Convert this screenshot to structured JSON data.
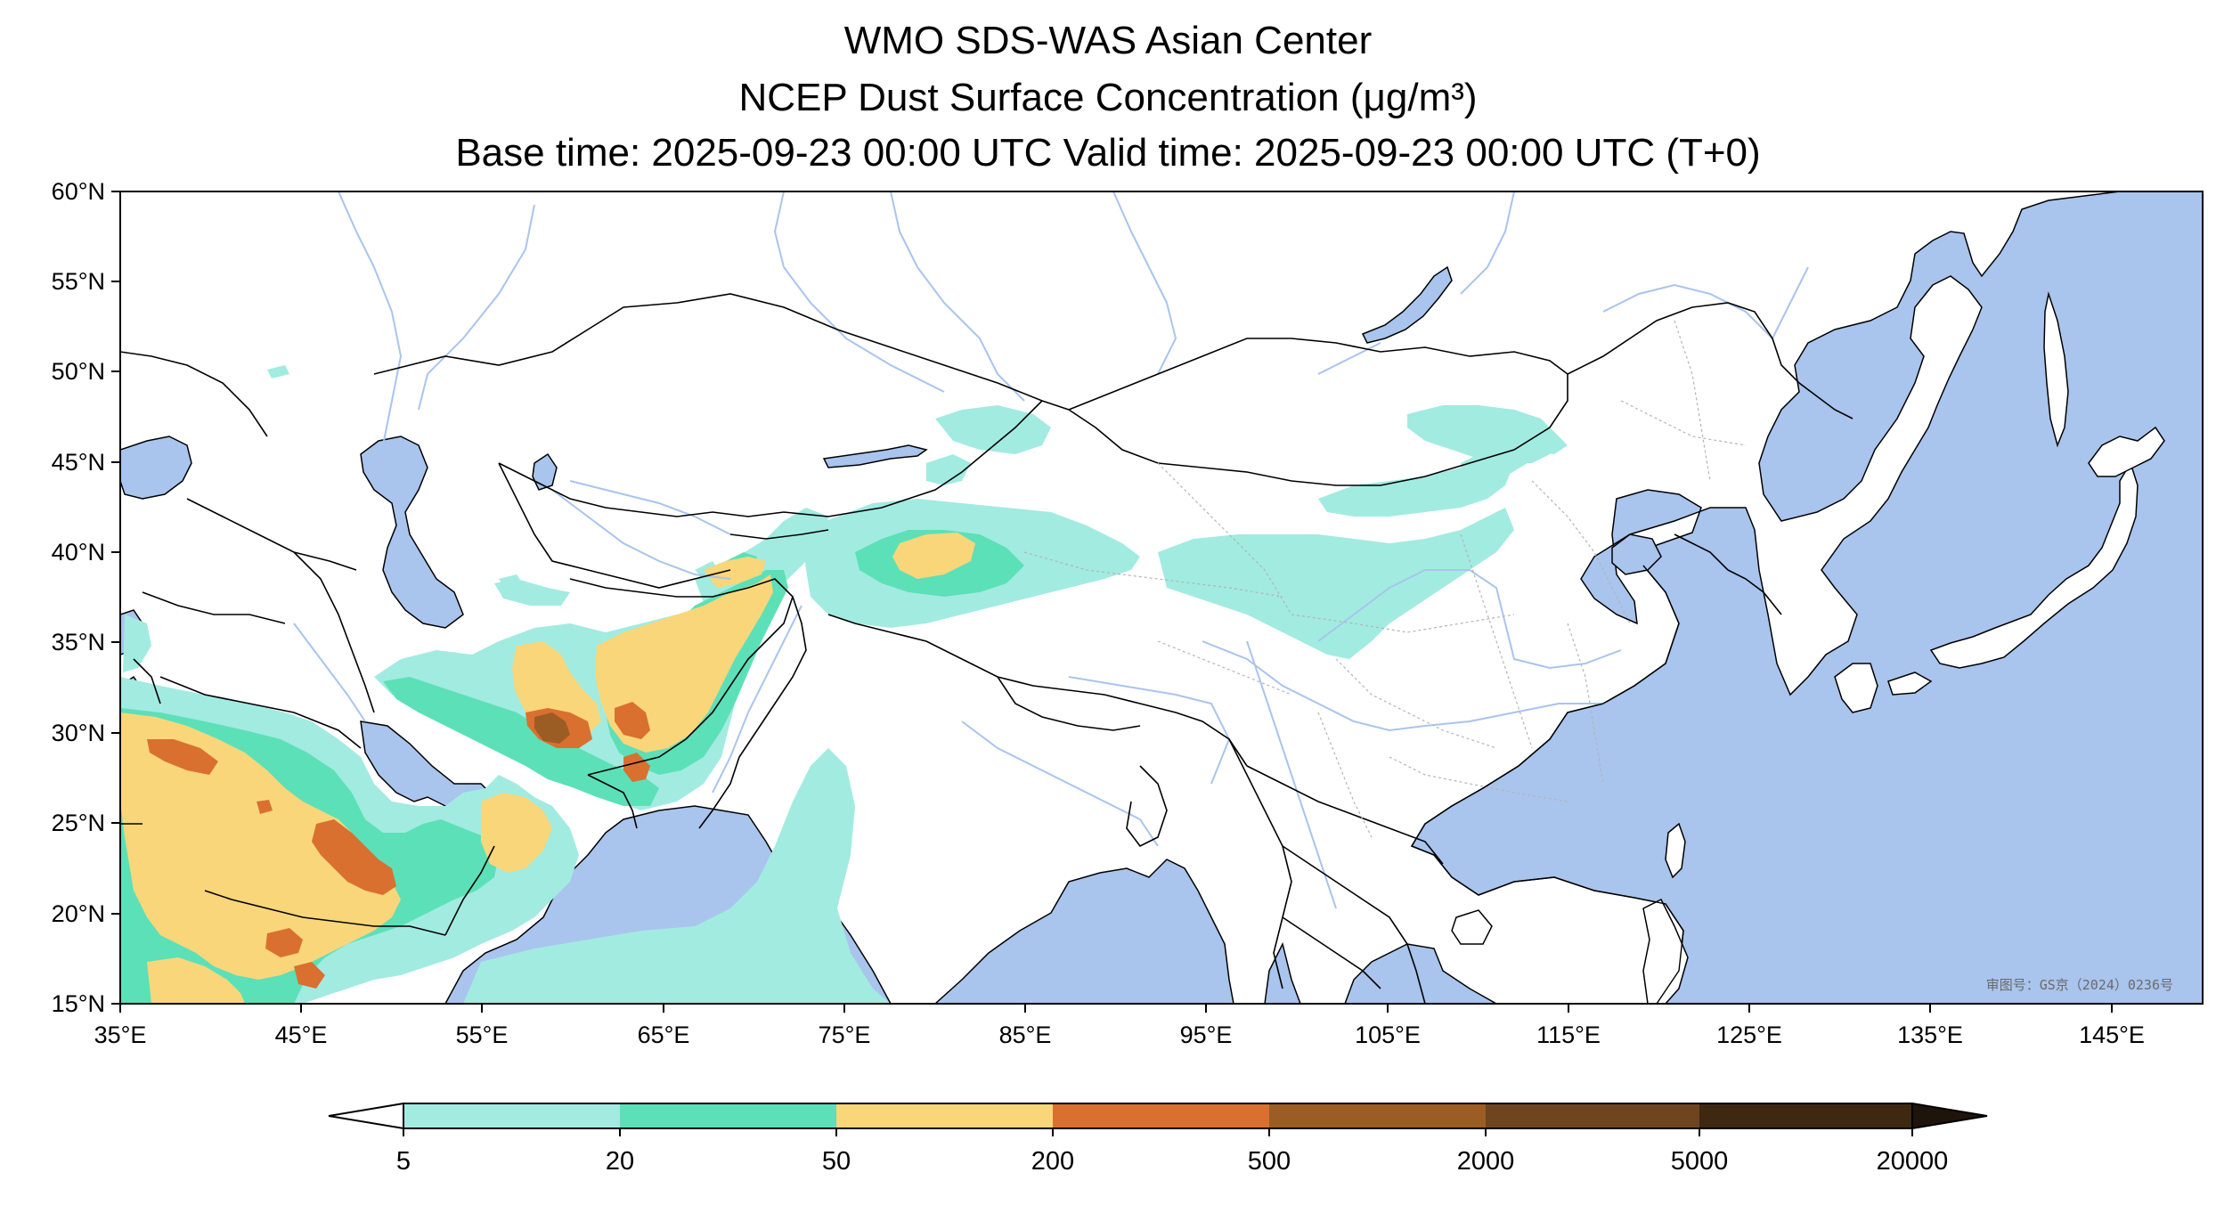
{
  "title": {
    "line1": "WMO SDS-WAS Asian Center",
    "line2": "NCEP Dust Surface Concentration (μg/m³)",
    "line3": "Base time: 2025-09-23 00:00 UTC Valid time: 2025-09-23 00:00 UTC (T+0)"
  },
  "map": {
    "extent": {
      "lon_min": 35,
      "lon_max": 150,
      "lat_min": 15,
      "lat_max": 60
    },
    "lat_ticks": [
      "15°N",
      "20°N",
      "25°N",
      "30°N",
      "35°N",
      "40°N",
      "45°N",
      "50°N",
      "55°N",
      "60°N"
    ],
    "lon_ticks": [
      "35°E",
      "45°E",
      "55°E",
      "65°E",
      "75°E",
      "85°E",
      "95°E",
      "105°E",
      "115°E",
      "125°E",
      "135°E",
      "145°E"
    ],
    "approval_text": "审图号：GS京（2024）0236号",
    "colors": {
      "ocean": "#a9c4ed",
      "land": "#ffffff",
      "border": "#000000",
      "river": "#a9c4ed",
      "province": "#b4b4b4"
    }
  },
  "colorbar": {
    "labels": [
      "5",
      "20",
      "50",
      "200",
      "500",
      "2000",
      "5000",
      "20000"
    ],
    "colors": [
      "#a2ebe0",
      "#5ce0b8",
      "#f9d67a",
      "#d97030",
      "#9c5d25",
      "#6f4520",
      "#3e2812"
    ],
    "under_color": "#ffffff",
    "over_color": "#1e140a"
  },
  "dust_field": [
    {
      "level": "5-20",
      "color": "#a2ebe0"
    },
    {
      "level": "20-50",
      "color": "#5ce0b8"
    },
    {
      "level": "50-200",
      "color": "#f9d67a"
    },
    {
      "level": "200-500",
      "color": "#d97030"
    },
    {
      "level": "500-2000",
      "color": "#9c5d25"
    }
  ]
}
